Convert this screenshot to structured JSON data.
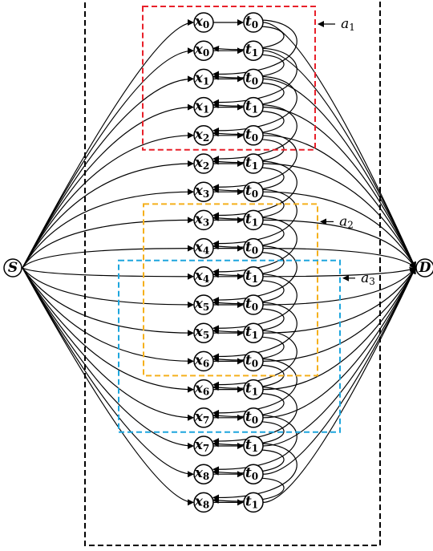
{
  "diagram": {
    "source": {
      "label": "S"
    },
    "destination": {
      "label": "D"
    },
    "rows": [
      {
        "x": "0",
        "t": "0"
      },
      {
        "x": "0",
        "t": "1"
      },
      {
        "x": "1",
        "t": "0"
      },
      {
        "x": "1",
        "t": "1"
      },
      {
        "x": "2",
        "t": "0"
      },
      {
        "x": "2",
        "t": "1"
      },
      {
        "x": "3",
        "t": "0"
      },
      {
        "x": "3",
        "t": "1"
      },
      {
        "x": "4",
        "t": "0"
      },
      {
        "x": "4",
        "t": "1"
      },
      {
        "x": "5",
        "t": "0"
      },
      {
        "x": "5",
        "t": "1"
      },
      {
        "x": "6",
        "t": "0"
      },
      {
        "x": "6",
        "t": "1"
      },
      {
        "x": "7",
        "t": "0"
      },
      {
        "x": "7",
        "t": "1"
      },
      {
        "x": "8",
        "t": "0"
      },
      {
        "x": "8",
        "t": "1"
      }
    ],
    "boxes": [
      {
        "label": "a",
        "sub": "1",
        "color": "#e8202a",
        "first_row": 0,
        "last_row": 4
      },
      {
        "label": "a",
        "sub": "2",
        "color": "#f5b01c",
        "first_row": 7,
        "last_row": 12
      },
      {
        "label": "a",
        "sub": "3",
        "color": "#1ea6dd",
        "first_row": 9,
        "last_row": 14
      }
    ],
    "outer_frame_color": "#000000"
  }
}
